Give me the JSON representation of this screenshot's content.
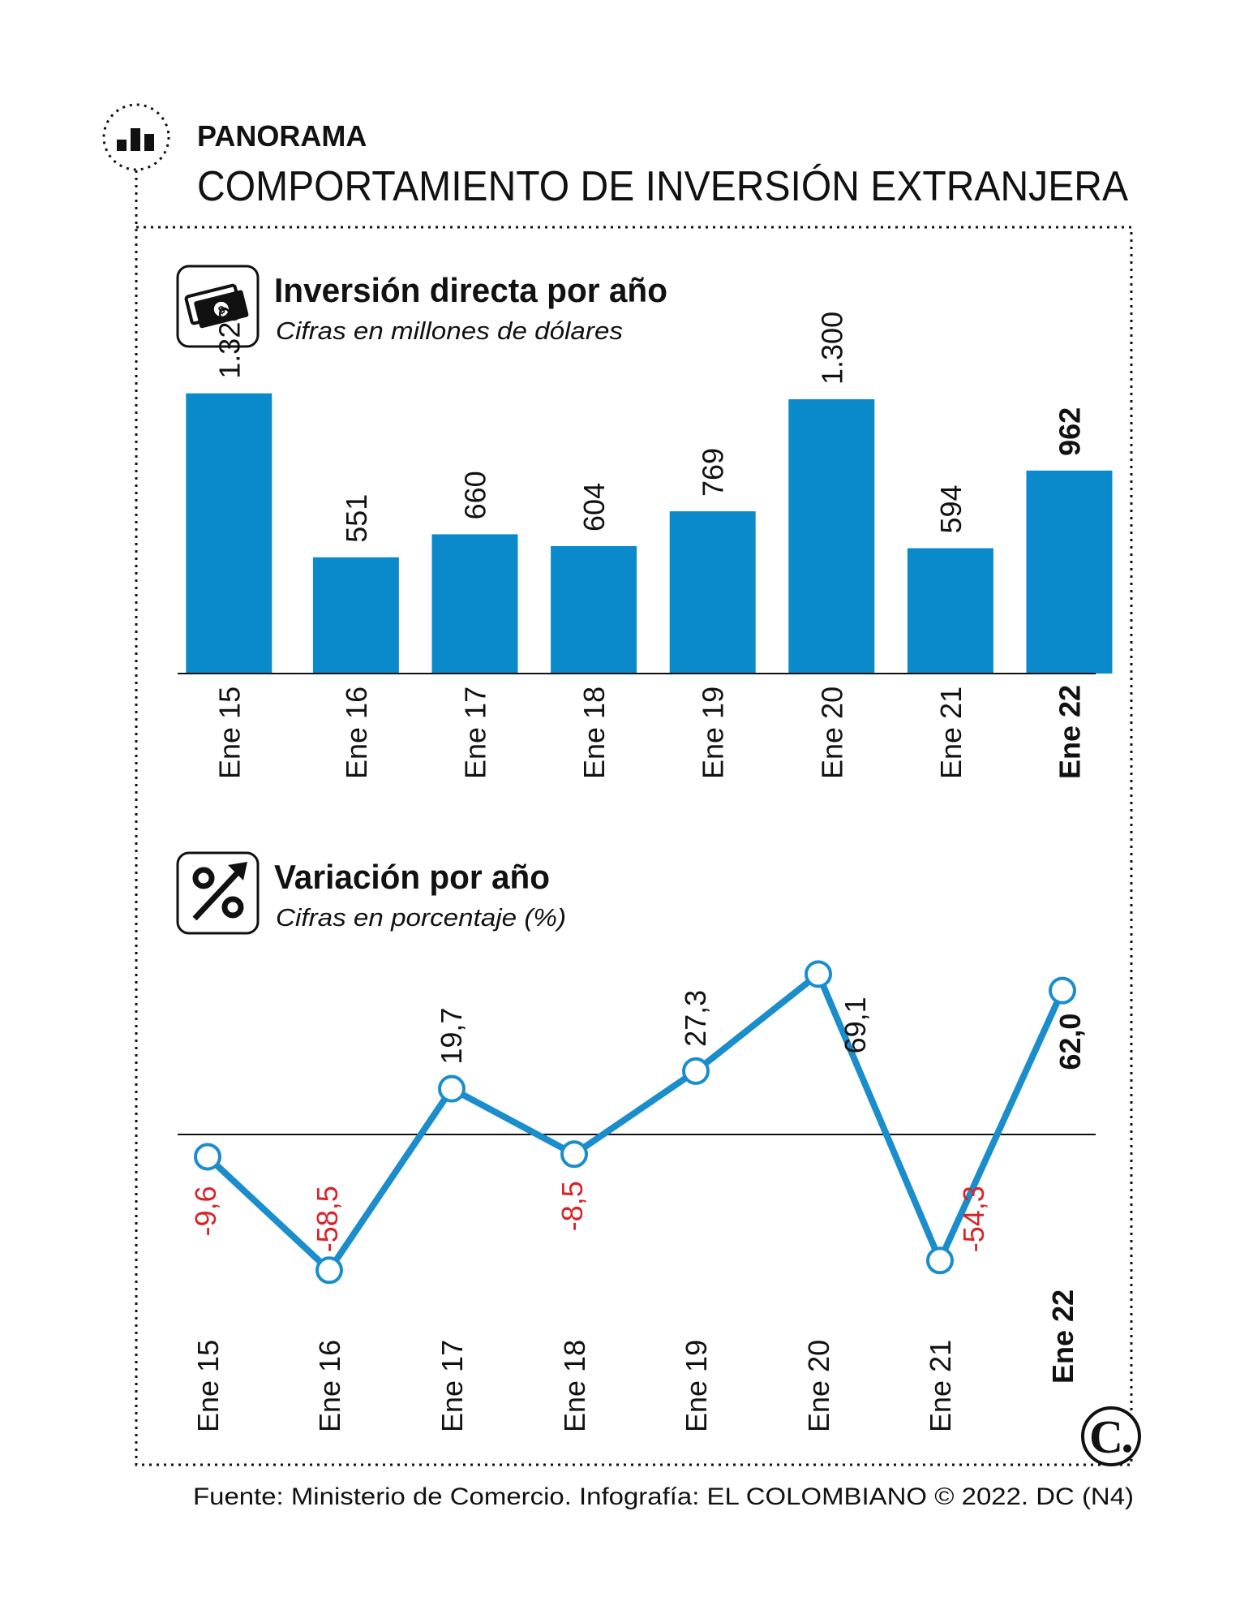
{
  "header": {
    "kicker": "PANORAMA",
    "title": "COMPORTAMIENTO DE INVERSIÓN EXTRANJERA",
    "icon": "bar-chart-icon"
  },
  "colors": {
    "bar": "#0b8acb",
    "line": "#1a8dcc",
    "negative": "#d8232a",
    "text": "#111111"
  },
  "chart_data": [
    {
      "type": "bar",
      "title": "Inversión directa por año",
      "subtitle": "Cifras en millones de dólares",
      "icon": "money-icon",
      "categories": [
        "Ene 15",
        "Ene 16",
        "Ene 17",
        "Ene 18",
        "Ene 19",
        "Ene 20",
        "Ene 21",
        "Ene 22"
      ],
      "values": [
        1328,
        551,
        660,
        604,
        769,
        1300,
        594,
        962
      ],
      "value_labels": [
        "1.328",
        "551",
        "660",
        "604",
        "769",
        "1.300",
        "594",
        "962"
      ],
      "highlight_index": 7,
      "ylim": [
        0,
        1328
      ],
      "grid": false,
      "legend": "none"
    },
    {
      "type": "line",
      "title": "Variación por año",
      "subtitle": "Cifras en porcentaje (%)",
      "icon": "percent-arrow-icon",
      "categories": [
        "Ene 15",
        "Ene 16",
        "Ene 17",
        "Ene 18",
        "Ene 19",
        "Ene 20",
        "Ene 21",
        "Ene 22"
      ],
      "values": [
        -9.6,
        -58.5,
        19.7,
        -8.5,
        27.3,
        69.1,
        -54.3,
        62.0
      ],
      "value_labels": [
        "-9,6",
        "-58,5",
        "19,7",
        "-8,5",
        "27,3",
        "69,1",
        "-54,3",
        "62,0"
      ],
      "highlight_index": 7,
      "zero_line": true,
      "ylim": [
        -58.5,
        69.1
      ],
      "grid": false,
      "legend": "none"
    }
  ],
  "footer": {
    "source": "Fuente: Ministerio de Comercio. Infografía: EL COLOMBIANO © 2022. DC (N4)",
    "logo_letter": "C"
  }
}
